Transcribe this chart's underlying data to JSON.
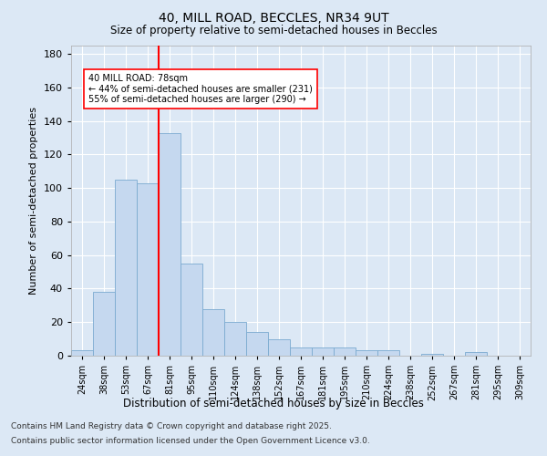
{
  "title_line1": "40, MILL ROAD, BECCLES, NR34 9UT",
  "title_line2": "Size of property relative to semi-detached houses in Beccles",
  "xlabel": "Distribution of semi-detached houses by size in Beccles",
  "ylabel": "Number of semi-detached properties",
  "categories": [
    "24sqm",
    "38sqm",
    "53sqm",
    "67sqm",
    "81sqm",
    "95sqm",
    "110sqm",
    "124sqm",
    "138sqm",
    "152sqm",
    "167sqm",
    "181sqm",
    "195sqm",
    "210sqm",
    "224sqm",
    "238sqm",
    "252sqm",
    "267sqm",
    "281sqm",
    "295sqm",
    "309sqm"
  ],
  "values": [
    3,
    38,
    105,
    103,
    133,
    55,
    28,
    20,
    14,
    10,
    5,
    5,
    5,
    3,
    3,
    0,
    1,
    0,
    2,
    0,
    0
  ],
  "bar_color": "#c5d8ef",
  "bar_edge_color": "#7aaad0",
  "annotation_title": "40 MILL ROAD: 78sqm",
  "annotation_line1": "← 44% of semi-detached houses are smaller (231)",
  "annotation_line2": "55% of semi-detached houses are larger (290) →",
  "footnote1": "Contains HM Land Registry data © Crown copyright and database right 2025.",
  "footnote2": "Contains public sector information licensed under the Open Government Licence v3.0.",
  "ylim": [
    0,
    185
  ],
  "bg_color": "#dce8f5",
  "plot_bg_color": "#dce8f5",
  "grid_color": "#ffffff",
  "red_line_x": 4.5
}
